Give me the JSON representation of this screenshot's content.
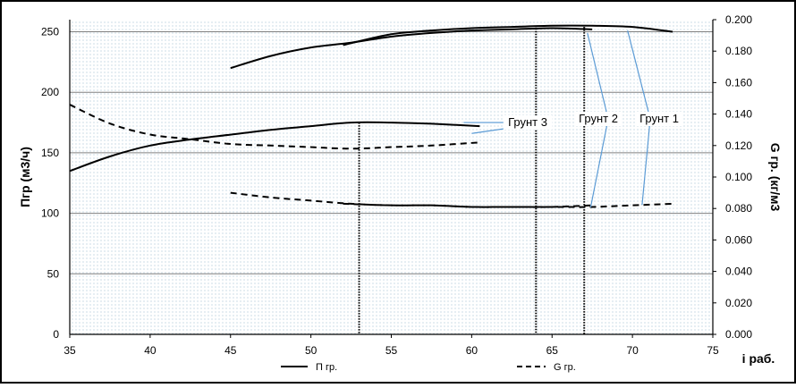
{
  "chart_data": {
    "type": "line",
    "title": "",
    "xlabel": "i раб.",
    "ylabel": "Пгр (м3/ч)",
    "y2label": "G гр. (кг/м3",
    "xlim": [
      35,
      75
    ],
    "ylim": [
      0,
      260
    ],
    "y2lim": [
      0,
      0.2
    ],
    "x_ticks": [
      "35",
      "40",
      "45",
      "50",
      "55",
      "60",
      "65",
      "70",
      "75"
    ],
    "y_ticks": [
      "0",
      "50",
      "100",
      "150",
      "200",
      "250"
    ],
    "y2_ticks": [
      "0.000",
      "0.020",
      "0.040",
      "0.060",
      "0.080",
      "0.100",
      "0.120",
      "0.140",
      "0.160",
      "0.180",
      "0.200"
    ],
    "grid": true,
    "legend_position": "bottom",
    "legend": [
      "П гр.",
      "G гр."
    ],
    "series": [
      {
        "name": "П гр.",
        "axis": "left",
        "style": "solid",
        "label": "Грунт 3",
        "x": [
          35,
          37.5,
          40,
          42.5,
          45,
          47.5,
          50,
          52.5,
          55,
          57.5,
          60.5
        ],
        "y": [
          135,
          147,
          156,
          161,
          165,
          169,
          172,
          175,
          175,
          174,
          172
        ]
      },
      {
        "name": "П гр.",
        "axis": "left",
        "style": "solid",
        "label": "Грунт 2",
        "x": [
          45,
          47.5,
          50,
          52.5,
          55,
          57.5,
          60,
          62.5,
          65,
          67.5
        ],
        "y": [
          220,
          230,
          237,
          241,
          246,
          249,
          251,
          252,
          253,
          252
        ]
      },
      {
        "name": "П гр.",
        "axis": "left",
        "style": "solid",
        "label": "Грунт 1",
        "x": [
          52,
          55,
          57.5,
          60,
          62.5,
          65,
          67.5,
          70,
          72.5
        ],
        "y": [
          239,
          248,
          251,
          253,
          254,
          255,
          255,
          254,
          250
        ]
      },
      {
        "name": "G гр.",
        "axis": "right",
        "style": "dashed",
        "label": "Грунт 3",
        "x": [
          35,
          37.5,
          40,
          42.5,
          45,
          47.5,
          50,
          52.5,
          55,
          57.5,
          60.5
        ],
        "y": [
          0.146,
          0.134,
          0.127,
          0.124,
          0.121,
          0.12,
          0.119,
          0.118,
          0.119,
          0.12,
          0.122
        ]
      },
      {
        "name": "G гр.",
        "axis": "right",
        "style": "dashed",
        "label": "Грунт 2",
        "x": [
          45,
          47.5,
          50,
          52.5,
          55,
          57.5,
          60,
          62.5,
          65,
          67.5
        ],
        "y": [
          0.09,
          0.087,
          0.085,
          0.083,
          0.082,
          0.082,
          0.081,
          0.081,
          0.081,
          0.082
        ]
      },
      {
        "name": "G гр.",
        "axis": "right",
        "style": "dashed",
        "label": "Грунт 1",
        "x": [
          52,
          55,
          57.5,
          60,
          62.5,
          65,
          67.5,
          70,
          72.5
        ],
        "y": [
          0.083,
          0.082,
          0.082,
          0.081,
          0.081,
          0.081,
          0.081,
          0.082,
          0.083
        ]
      }
    ],
    "markers": [
      {
        "x": 53,
        "y_top": 175
      },
      {
        "x": 64,
        "y_top": 255
      },
      {
        "x": 67,
        "y_top": 254
      }
    ],
    "annotations": [
      {
        "text": "Грунт 3",
        "points_to": [
          [
            59.5,
            175
          ],
          [
            60,
            166
          ]
        ]
      },
      {
        "text": "Грунт 2",
        "points_to": [
          [
            67.2,
            249
          ],
          [
            67.4,
            105
          ]
        ]
      },
      {
        "text": "Грунт 1",
        "points_to": [
          [
            69.7,
            251
          ],
          [
            70.6,
            107
          ]
        ]
      }
    ],
    "colors": {
      "line": "#000000",
      "leader": "#5b9bd5",
      "grid": "#808080",
      "dots": "#a9c3d6"
    }
  }
}
